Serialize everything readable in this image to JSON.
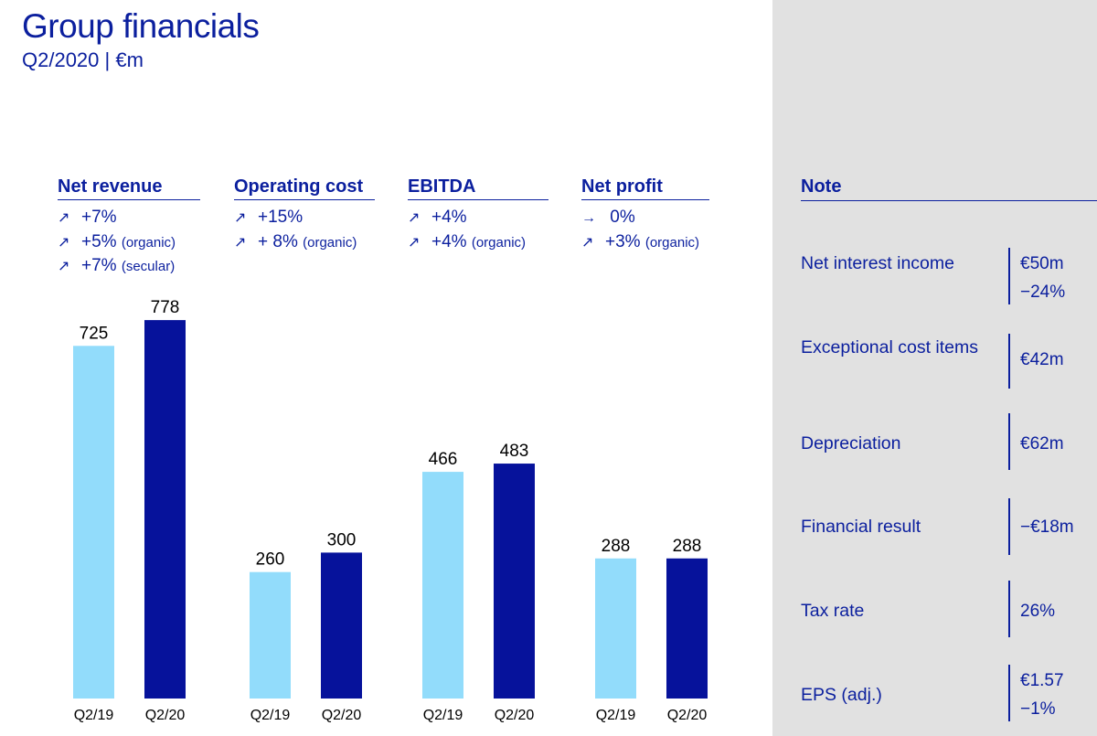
{
  "header": {
    "title": "Group financials",
    "subtitle": "Q2/2020 | €m"
  },
  "kpis": [
    {
      "title": "Net revenue",
      "lines": [
        {
          "arrow": "↗",
          "value": "+7%",
          "note": ""
        },
        {
          "arrow": "↗",
          "value": "+5%",
          "note": "(organic)"
        },
        {
          "arrow": "↗",
          "value": "+7%",
          "note": "(secular)"
        }
      ]
    },
    {
      "title": "Operating cost",
      "lines": [
        {
          "arrow": "↗",
          "value": "+15%",
          "note": ""
        },
        {
          "arrow": "↗",
          "value": "+ 8%",
          "note": "(organic)"
        }
      ]
    },
    {
      "title": "EBITDA",
      "lines": [
        {
          "arrow": "↗",
          "value": "+4%",
          "note": ""
        },
        {
          "arrow": "↗",
          "value": "+4%",
          "note": "(organic)"
        }
      ]
    },
    {
      "title": "Net profit",
      "lines": [
        {
          "arrow": "→",
          "value": " 0%",
          "note": ""
        },
        {
          "arrow": "↗",
          "value": "+3%",
          "note": "(organic)"
        }
      ]
    }
  ],
  "chart_data": {
    "type": "bar",
    "title": "Group financials",
    "subtitle": "Q2/2020 | €m",
    "groups": [
      "Net revenue",
      "Operating cost",
      "EBITDA",
      "Net profit"
    ],
    "series": [
      {
        "name": "Q2/19",
        "color": "#92dcfb",
        "values": [
          725,
          260,
          466,
          288
        ]
      },
      {
        "name": "Q2/20",
        "color": "#06129b",
        "values": [
          778,
          300,
          483,
          288
        ]
      }
    ],
    "ylim": [
      0,
      800
    ],
    "grid": false,
    "legend": "none",
    "xlabel": "",
    "ylabel": ""
  },
  "notes": {
    "title": "Note",
    "items": [
      {
        "label": "Net interest income",
        "values": [
          "€50m",
          "−24%"
        ]
      },
      {
        "label": "Exceptional cost items",
        "values": [
          "€42m"
        ]
      },
      {
        "label": "Depreciation",
        "values": [
          "€62m"
        ]
      },
      {
        "label": "Financial result",
        "values": [
          "−€18m"
        ]
      },
      {
        "label": "Tax rate",
        "values": [
          "26%"
        ]
      },
      {
        "label": "EPS (adj.)",
        "values": [
          "€1.57",
          "−1%"
        ]
      }
    ]
  },
  "colors": {
    "brand": "#0b1f9e",
    "light_bar": "#92dcfb",
    "dark_bar": "#06129b",
    "panel": "#e1e1e1"
  }
}
